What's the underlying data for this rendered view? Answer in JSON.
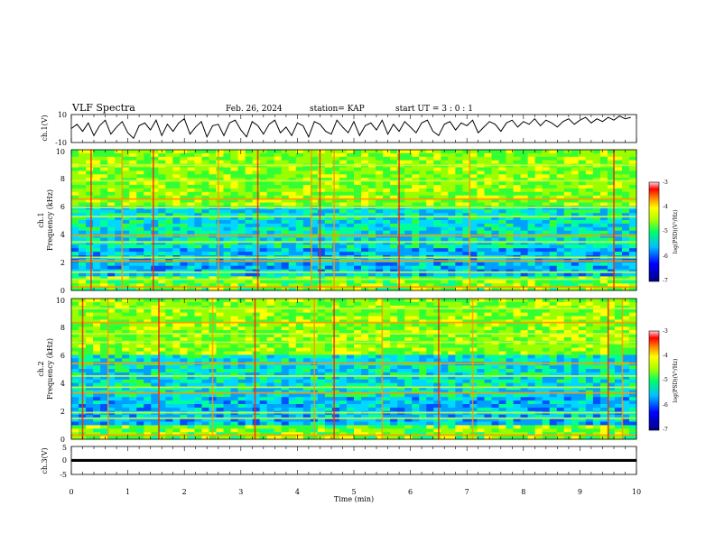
{
  "header": {
    "title": "VLF Spectra",
    "date": "Feb. 26, 2024",
    "station": "station= KAP",
    "start_time": "start  UT =  3 : 0 : 1"
  },
  "chart_data": [
    {
      "type": "line",
      "panel": "ch1-waveform",
      "ylabel": "ch.1(V)",
      "ylim": [
        -10,
        10
      ],
      "yticks": [
        10,
        -10
      ],
      "xlim": [
        0,
        10
      ],
      "x_step_min": 0.1,
      "values": [
        0,
        3,
        -2,
        4,
        -5,
        2,
        6,
        -4,
        1,
        5,
        -3,
        -7,
        2,
        4,
        -1,
        6,
        -5,
        3,
        -2,
        4,
        7,
        -4,
        1,
        5,
        -6,
        2,
        3,
        -5,
        4,
        6,
        -1,
        -6,
        5,
        2,
        -4,
        3,
        6,
        -3,
        1,
        -5,
        4,
        2,
        -6,
        5,
        3,
        -2,
        -4,
        6,
        1,
        -3,
        5,
        -5,
        2,
        4,
        -1,
        6,
        -4,
        3,
        -2,
        5,
        1,
        -3,
        4,
        6,
        -2,
        -5,
        3,
        5,
        -1,
        4,
        2,
        6,
        -3,
        1,
        5,
        3,
        -2,
        4,
        6,
        1,
        5,
        3,
        7,
        2,
        6,
        4,
        1,
        5,
        7,
        3,
        6,
        8,
        4,
        7,
        5,
        8,
        6,
        9,
        7,
        8
      ],
      "grid": false
    },
    {
      "type": "heatmap",
      "panel": "ch1-spectrogram",
      "ylabel_line1": "ch.1",
      "ylabel_line2": "Frequency (kHz)",
      "ylim": [
        0,
        10
      ],
      "yticks": [
        0,
        2,
        4,
        6,
        8,
        10
      ],
      "xlim": [
        0,
        10
      ],
      "colorbar": {
        "label": "log(PSD)(V²/Hz)",
        "range": [
          -7,
          -3
        ],
        "ticks": [
          -3,
          -4,
          -5,
          -6,
          -7
        ]
      },
      "band_freqs_khz": [
        0.25,
        0.8,
        1.3,
        2.1,
        2.35,
        3.45,
        3.9,
        5.25,
        5.9,
        6.5,
        7.8,
        8.9
      ],
      "spike_times_min": [
        0.35,
        0.9,
        1.45,
        2.6,
        3.3,
        4.25,
        4.4,
        4.65,
        5.8,
        7.05,
        9.6
      ],
      "color_scale": [
        "#00008b",
        "#0000ff",
        "#00bfff",
        "#00ff7f",
        "#7fff00",
        "#ffff00",
        "#ffa500",
        "#ff0000",
        "#ffc0cb"
      ]
    },
    {
      "type": "heatmap",
      "panel": "ch2-spectrogram",
      "ylabel_line1": "ch.2",
      "ylabel_line2": "Frequency (kHz)",
      "ylim": [
        0,
        10
      ],
      "yticks": [
        0,
        2,
        4,
        6,
        8,
        10
      ],
      "xlim": [
        0,
        10
      ],
      "colorbar": {
        "label": "log(PSD)(V²/Hz)",
        "range": [
          -7,
          -3
        ],
        "ticks": [
          -3,
          -4,
          -5,
          -6,
          -7
        ]
      },
      "band_freqs_khz": [
        0.3,
        1.5,
        1.9,
        3.3,
        3.7,
        4.5,
        5.4,
        6.9,
        7.5,
        8.3,
        9.3
      ],
      "spike_times_min": [
        0.2,
        0.65,
        1.55,
        2.5,
        3.25,
        4.3,
        4.65,
        5.5,
        6.5,
        7.1,
        9.5,
        9.75
      ],
      "color_scale": [
        "#00008b",
        "#0000ff",
        "#00bfff",
        "#00ff7f",
        "#7fff00",
        "#ffff00",
        "#ffa500",
        "#ff0000",
        "#ffc0cb"
      ]
    },
    {
      "type": "line",
      "panel": "ch3-waveform",
      "ylabel": "ch.3(V)",
      "ylim": [
        -5,
        5
      ],
      "yticks": [
        5,
        0,
        -5
      ],
      "xlim": [
        0,
        10
      ],
      "xticks": [
        0,
        1,
        2,
        3,
        4,
        5,
        6,
        7,
        8,
        9,
        10
      ],
      "xlabel": "Time (min)",
      "band_center_v": 0,
      "band_half_width_v": 0.5
    }
  ]
}
